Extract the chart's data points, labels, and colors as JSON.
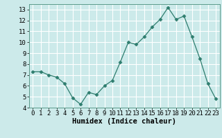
{
  "x": [
    0,
    1,
    2,
    3,
    4,
    5,
    6,
    7,
    8,
    9,
    10,
    11,
    12,
    13,
    14,
    15,
    16,
    17,
    18,
    19,
    20,
    21,
    22,
    23
  ],
  "y": [
    7.3,
    7.3,
    7.0,
    6.8,
    6.2,
    4.9,
    4.3,
    5.4,
    5.2,
    6.0,
    6.5,
    8.2,
    10.0,
    9.8,
    10.5,
    11.4,
    12.1,
    13.2,
    12.1,
    12.4,
    10.5,
    8.5,
    6.2,
    4.8
  ],
  "line_color": "#2e7d6e",
  "marker": "D",
  "marker_size": 2.5,
  "bg_color": "#cceaea",
  "grid_color": "#ffffff",
  "xlabel": "Humidex (Indice chaleur)",
  "ylim": [
    4,
    13.5
  ],
  "xlim": [
    -0.5,
    23.5
  ],
  "yticks": [
    4,
    5,
    6,
    7,
    8,
    9,
    10,
    11,
    12,
    13
  ],
  "xticks": [
    0,
    1,
    2,
    3,
    4,
    5,
    6,
    7,
    8,
    9,
    10,
    11,
    12,
    13,
    14,
    15,
    16,
    17,
    18,
    19,
    20,
    21,
    22,
    23
  ],
  "tick_fontsize": 6.5,
  "label_fontsize": 7.5
}
